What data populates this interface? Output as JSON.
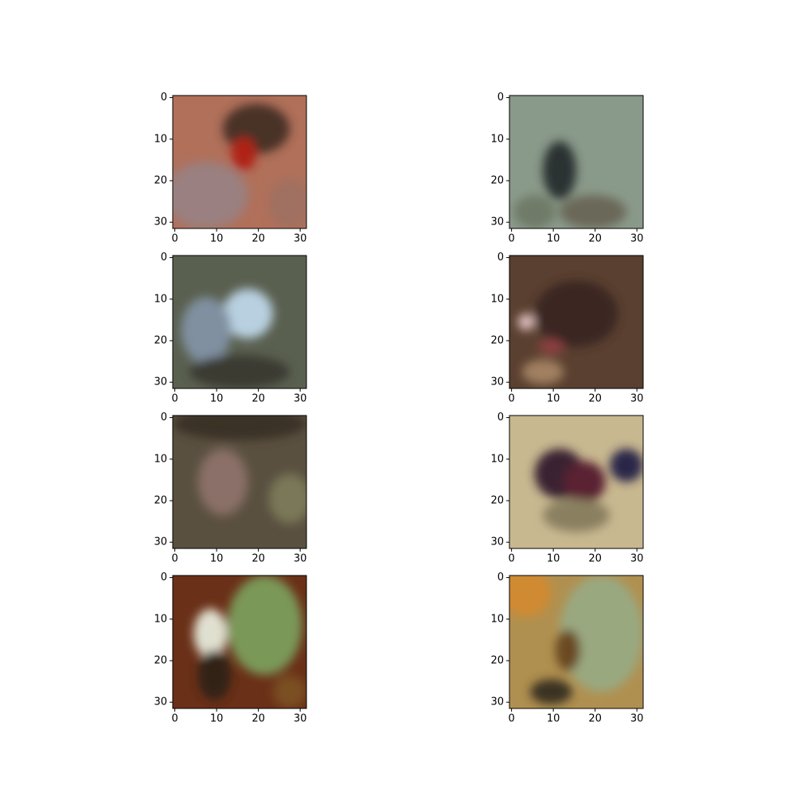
{
  "chart_data": [
    {
      "type": "image",
      "xlim": [
        -0.5,
        31.5
      ],
      "ylim": [
        31.5,
        -0.5
      ],
      "xticks": [
        0,
        10,
        20,
        30
      ],
      "yticks": [
        0,
        10,
        20,
        30
      ]
    },
    {
      "type": "image",
      "xlim": [
        -0.5,
        31.5
      ],
      "ylim": [
        31.5,
        -0.5
      ],
      "xticks": [
        0,
        10,
        20,
        30
      ],
      "yticks": [
        0,
        10,
        20,
        30
      ]
    },
    {
      "type": "image",
      "xlim": [
        -0.5,
        31.5
      ],
      "ylim": [
        31.5,
        -0.5
      ],
      "xticks": [
        0,
        10,
        20,
        30
      ],
      "yticks": [
        0,
        10,
        20,
        30
      ]
    },
    {
      "type": "image",
      "xlim": [
        -0.5,
        31.5
      ],
      "ylim": [
        31.5,
        -0.5
      ],
      "xticks": [
        0,
        10,
        20,
        30
      ],
      "yticks": [
        0,
        10,
        20,
        30
      ]
    },
    {
      "type": "image",
      "xlim": [
        -0.5,
        31.5
      ],
      "ylim": [
        31.5,
        -0.5
      ],
      "xticks": [
        0,
        10,
        20,
        30
      ],
      "yticks": [
        0,
        10,
        20,
        30
      ]
    },
    {
      "type": "image",
      "xlim": [
        -0.5,
        31.5
      ],
      "ylim": [
        31.5,
        -0.5
      ],
      "xticks": [
        0,
        10,
        20,
        30
      ],
      "yticks": [
        0,
        10,
        20,
        30
      ]
    },
    {
      "type": "image",
      "xlim": [
        -0.5,
        31.5
      ],
      "ylim": [
        31.5,
        -0.5
      ],
      "xticks": [
        0,
        10,
        20,
        30
      ],
      "yticks": [
        0,
        10,
        20,
        30
      ]
    },
    {
      "type": "image",
      "xlim": [
        -0.5,
        31.5
      ],
      "ylim": [
        31.5,
        -0.5
      ],
      "xticks": [
        0,
        10,
        20,
        30
      ],
      "yticks": [
        0,
        10,
        20,
        30
      ]
    }
  ]
}
